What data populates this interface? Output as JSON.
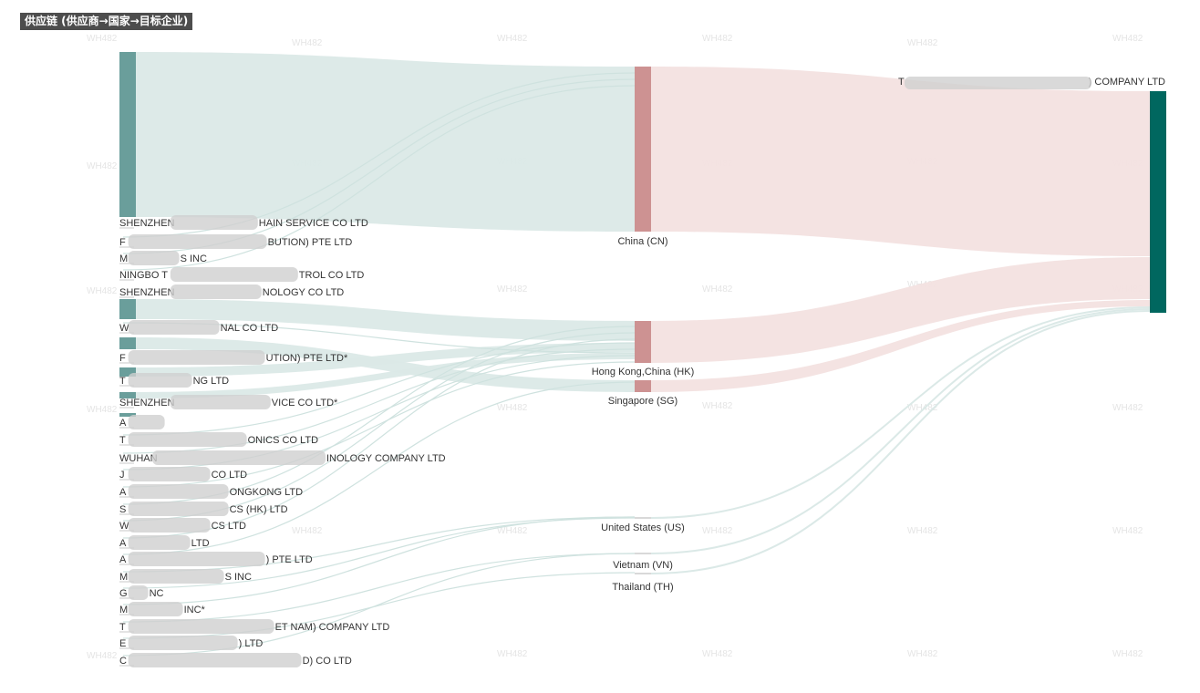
{
  "title": "供应链 (供应商→国家→目标企业)",
  "watermark": "WH482",
  "colors": {
    "supplier_node": "#6a9e9b",
    "country_node": "#cd9292",
    "target_node": "#00675f",
    "flow_supplier_country": "#dbe9e7",
    "flow_country_target": "#f3e1e0",
    "label": "#333333",
    "blur": "#cfcfcf"
  },
  "target": {
    "label_start": "T",
    "label_end": ") COMPANY LTD"
  },
  "countries": [
    {
      "label": "China (CN)"
    },
    {
      "label": "Hong Kong,China (HK)"
    },
    {
      "label": "Singapore (SG)"
    },
    {
      "label": "United States (US)"
    },
    {
      "label": "Vietnam (VN)"
    },
    {
      "label": "Thailand (TH)"
    }
  ],
  "suppliers": [
    {
      "label_start": "SHENZHEN",
      "label_end": "HAIN SERVICE CO LTD"
    },
    {
      "label_start": "F",
      "label_end": "BUTION) PTE LTD"
    },
    {
      "label_start": "M",
      "label_end": "S INC"
    },
    {
      "label_start": "NINGBO T",
      "label_end": "TROL CO LTD"
    },
    {
      "label_start": "SHENZHEN",
      "label_end": "NOLOGY CO LTD"
    },
    {
      "label_start": "W",
      "label_end": "NAL CO LTD"
    },
    {
      "label_start": "F",
      "label_end": "UTION) PTE LTD*"
    },
    {
      "label_start": "T",
      "label_end": "NG LTD"
    },
    {
      "label_start": "SHENZHEN",
      "label_end": "VICE CO LTD*"
    },
    {
      "label_start": "A",
      "label_end": ""
    },
    {
      "label_start": "T",
      "label_end": "ONICS CO LTD"
    },
    {
      "label_start": "WUHAN",
      "label_end": "INOLOGY COMPANY LTD"
    },
    {
      "label_start": "J",
      "label_end": "CO LTD"
    },
    {
      "label_start": "A",
      "label_end": "ONGKONG LTD"
    },
    {
      "label_start": "S",
      "label_end": "CS (HK) LTD"
    },
    {
      "label_start": "W",
      "label_end": "CS LTD"
    },
    {
      "label_start": "A",
      "label_end": "LTD"
    },
    {
      "label_start": "A",
      "label_end": ") PTE LTD"
    },
    {
      "label_start": "M",
      "label_end": "S INC"
    },
    {
      "label_start": "G",
      "label_end": "NC"
    },
    {
      "label_start": "M",
      "label_end": "INC*"
    },
    {
      "label_start": "T",
      "label_end": "ET NAM) COMPANY LTD"
    },
    {
      "label_start": "E",
      "label_end": ") LTD"
    },
    {
      "label_start": "C",
      "label_end": "D) CO LTD"
    }
  ]
}
